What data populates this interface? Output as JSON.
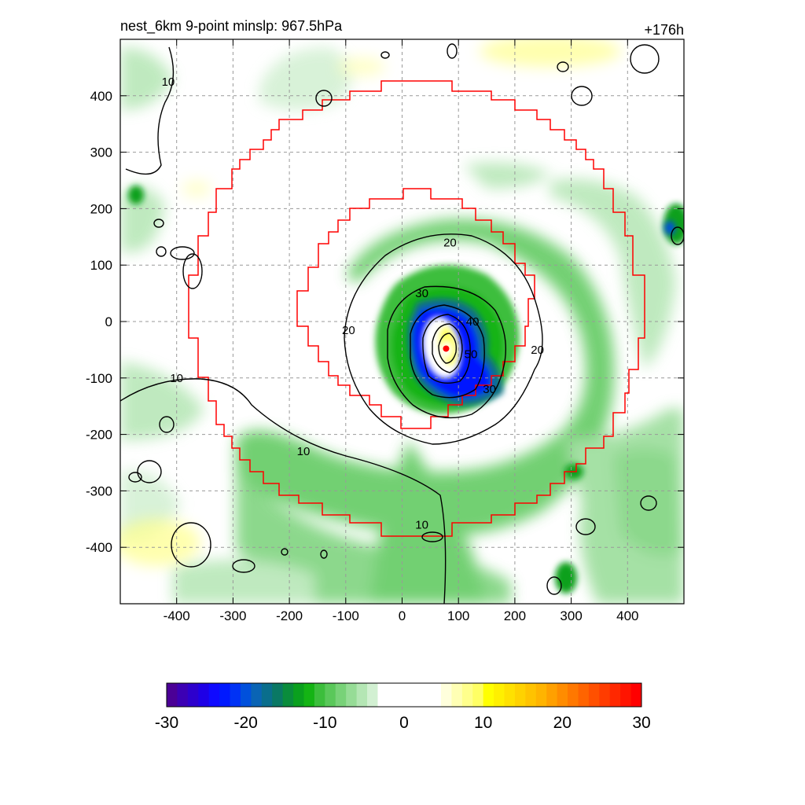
{
  "header": {
    "title": "nest_6km  9-point minslp: 967.5hPa",
    "forecast_hour": "+176h"
  },
  "colors": {
    "domain_box": "#ff0000",
    "contour": "#000000",
    "grid": "#999999"
  },
  "chart_data": {
    "type": "heatmap",
    "title": "nest_6km  9-point minslp: 967.5hPa",
    "annotation": "+176h",
    "xlabel": "",
    "ylabel": "",
    "xlim": [
      -500,
      500
    ],
    "ylim": [
      -500,
      500
    ],
    "grid": true,
    "x_ticks": [
      -400,
      -300,
      -200,
      -100,
      0,
      100,
      200,
      300,
      400
    ],
    "y_ticks": [
      400,
      300,
      200,
      100,
      0,
      -100,
      -200,
      -300,
      -400
    ],
    "storm_center": {
      "x": 78,
      "y": -48
    },
    "contour_levels": [
      10,
      20,
      30,
      40,
      50
    ],
    "contour_labels": [
      {
        "text": "10",
        "x": -415,
        "y": 425
      },
      {
        "text": "10",
        "x": -400,
        "y": -100
      },
      {
        "text": "10",
        "x": -175,
        "y": -230
      },
      {
        "text": "10",
        "x": 35,
        "y": -360
      },
      {
        "text": "20",
        "x": 85,
        "y": 140
      },
      {
        "text": "20",
        "x": -95,
        "y": -15
      },
      {
        "text": "20",
        "x": 240,
        "y": -50
      },
      {
        "text": "30",
        "x": 35,
        "y": 50
      },
      {
        "text": "30",
        "x": 155,
        "y": -120
      },
      {
        "text": "40",
        "x": 125,
        "y": 0
      },
      {
        "text": "50",
        "x": 122,
        "y": -58
      }
    ],
    "colorbar": {
      "min": -30,
      "max": 30,
      "tick_labels": [
        "-30",
        "-20",
        "-10",
        "0",
        "10",
        "20",
        "30"
      ],
      "colors": [
        "#4b0096",
        "#3c00b4",
        "#2d00cd",
        "#1e00e6",
        "#0f0aff",
        "#0019ff",
        "#0032f5",
        "#0050dc",
        "#0a64b4",
        "#0a6e8c",
        "#0a7864",
        "#0a8c3c",
        "#0aa01e",
        "#14b414",
        "#3cbe3c",
        "#5ac85a",
        "#78d278",
        "#96dc96",
        "#b4e6b4",
        "#d2f0d2",
        "#ffffff",
        "#ffffff",
        "#ffffff",
        "#ffffff",
        "#ffffff",
        "#ffffff",
        "#ffffdc",
        "#ffffb4",
        "#ffff8c",
        "#ffff64",
        "#ffff00",
        "#fff000",
        "#ffe100",
        "#ffd200",
        "#ffc300",
        "#ffb400",
        "#ffa000",
        "#ff8c00",
        "#ff7800",
        "#ff6400",
        "#ff5000",
        "#ff3c00",
        "#ff2800",
        "#ff1400",
        "#ff0000"
      ]
    }
  }
}
